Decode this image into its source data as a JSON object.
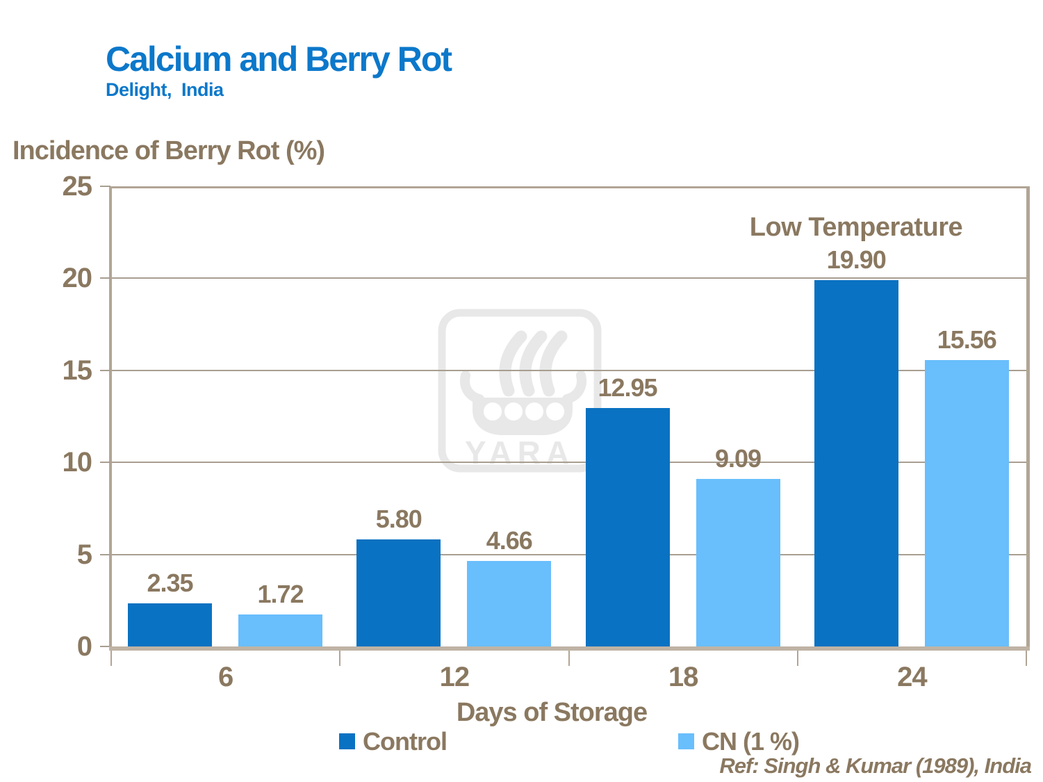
{
  "header": {
    "title": "Calcium and Berry Rot",
    "subtitle": "Delight,  India"
  },
  "chart_data": {
    "type": "bar",
    "title": "Calcium and Berry Rot",
    "subtitle": "Delight, India",
    "ylabel": "Incidence of Berry Rot (%)",
    "xlabel": "Days of Storage",
    "categories": [
      "6",
      "12",
      "18",
      "24"
    ],
    "series": [
      {
        "name": "Control",
        "color": "#0a72c2",
        "values": [
          2.35,
          5.8,
          12.95,
          19.9
        ]
      },
      {
        "name": "CN (1 %)",
        "color": "#69befc",
        "values": [
          1.72,
          4.66,
          9.09,
          15.56
        ]
      }
    ],
    "value_label_decimals": 2,
    "ylim": [
      0,
      25
    ],
    "ytick_step": 5,
    "grid": "horizontal",
    "legend_position": "bottom",
    "annotation": "Low Temperature"
  },
  "footer": {
    "reference": "Ref: Singh & Kumar (1989), India"
  },
  "watermark": {
    "text": "YARA"
  },
  "colors": {
    "title_blue": "#0c78ca",
    "text_brown": "#8a7860",
    "control_bar": "#0a72c2",
    "cn_bar": "#69befc",
    "grid_line": "#a89e90",
    "axis_line": "#b2a595",
    "baseline": "#bfb3a5",
    "watermark_gray": "#e8e8e8"
  }
}
